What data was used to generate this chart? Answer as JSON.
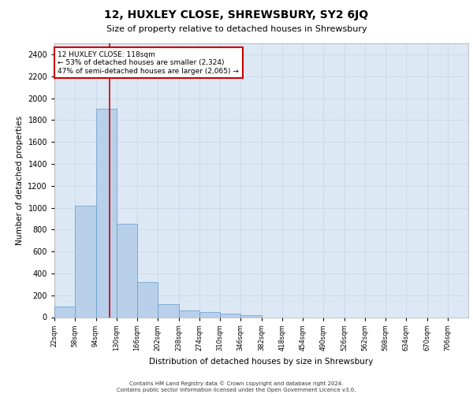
{
  "title1": "12, HUXLEY CLOSE, SHREWSBURY, SY2 6JQ",
  "title2": "Size of property relative to detached houses in Shrewsbury",
  "xlabel": "Distribution of detached houses by size in Shrewsbury",
  "ylabel": "Number of detached properties",
  "annotation_line1": "12 HUXLEY CLOSE: 118sqm",
  "annotation_line2": "← 53% of detached houses are smaller (2,324)",
  "annotation_line3": "47% of semi-detached houses are larger (2,065) →",
  "footer1": "Contains HM Land Registry data © Crown copyright and database right 2024.",
  "footer2": "Contains public sector information licensed under the Open Government Licence v3.0.",
  "bar_color": "#b8d0ea",
  "bar_edge_color": "#6699cc",
  "grid_color": "#c8d8ea",
  "background_color": "#dce8f4",
  "annotation_line_color": "#cc0000",
  "annotation_box_color": "#cc0000",
  "bin_edges": [
    22,
    58,
    94,
    130,
    166,
    202,
    238,
    274,
    310,
    346,
    382,
    418,
    454,
    490,
    526,
    562,
    598,
    634,
    670,
    706,
    742
  ],
  "bar_heights": [
    100,
    1020,
    1900,
    855,
    320,
    120,
    60,
    50,
    30,
    20,
    0,
    0,
    0,
    0,
    0,
    0,
    0,
    0,
    0,
    0
  ],
  "property_size": 118,
  "ylim": [
    0,
    2500
  ],
  "yticks": [
    0,
    200,
    400,
    600,
    800,
    1000,
    1200,
    1400,
    1600,
    1800,
    2000,
    2200,
    2400
  ]
}
